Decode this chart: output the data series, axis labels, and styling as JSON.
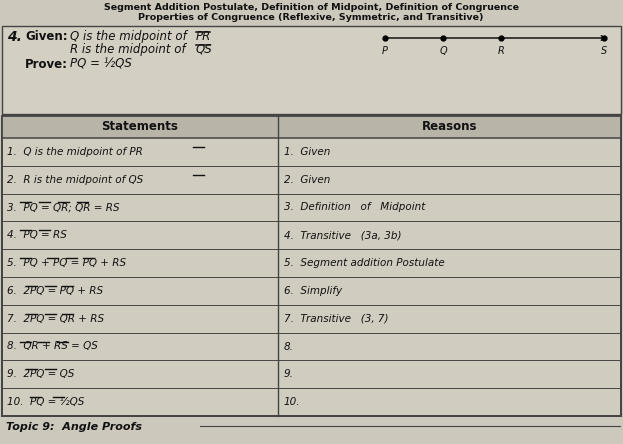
{
  "title_line1": "Segment Addition Postulate, Definition of Midpoint, Definition of Congruence",
  "title_line2": "Properties of Congruence (Reflexive, Symmetric, and Transitive)",
  "bg_color": "#ccc8bc",
  "header_bg": "#d4cfc3",
  "table_bg": "#d0ccc0",
  "table_header_bg": "#b8b4a8",
  "row_bg_alt": "#d8d4c8",
  "line_color": "#444444",
  "text_color": "#111111",
  "statements_header": "Statements",
  "reasons_header": "Reasons",
  "statements": [
    "1.  Q is the midpoint of PR",
    "2.  R is the midpoint of QS",
    "3.  PQ = QR; QR = RS",
    "4.  PQ = RS",
    "5.  PQ + PQ = PQ + RS",
    "6.  2PQ = PQ + RS",
    "7.  2PQ = QR + RS",
    "8.  QR + RS = QS",
    "9.  2PQ = QS",
    "10.  PQ = ½QS"
  ],
  "reasons": [
    "1.  Given",
    "2.  Given",
    "3.  Definition   of   Midpoint",
    "4.  Transitive   (3a, 3b)",
    "5.  Segment addition Postulate",
    "6.  Simplify",
    "7.  Transitive   (3, 7)",
    "8.",
    "9.",
    "10."
  ],
  "topic_footer": "Topic 9:  Angle Proofs",
  "fig_width": 6.23,
  "fig_height": 4.44,
  "dpi": 100
}
